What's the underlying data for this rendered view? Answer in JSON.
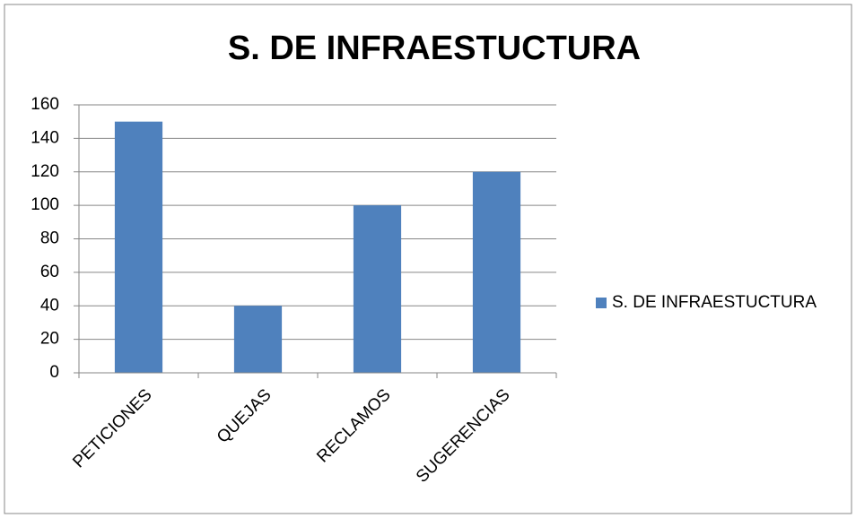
{
  "chart_data": {
    "type": "bar",
    "title": "S. DE INFRAESTUCTURA",
    "categories": [
      "PETICIONES",
      "QUEJAS",
      "RECLAMOS",
      "SUGERENCIAS"
    ],
    "series": [
      {
        "name": "S. DE INFRAESTUCTURA",
        "color": "#4f81bd",
        "values": [
          150,
          40,
          100,
          120
        ]
      }
    ],
    "ylim": [
      0,
      160
    ],
    "yticks": [
      0,
      20,
      40,
      60,
      80,
      100,
      120,
      140,
      160
    ],
    "grid": true,
    "legend": "right"
  }
}
